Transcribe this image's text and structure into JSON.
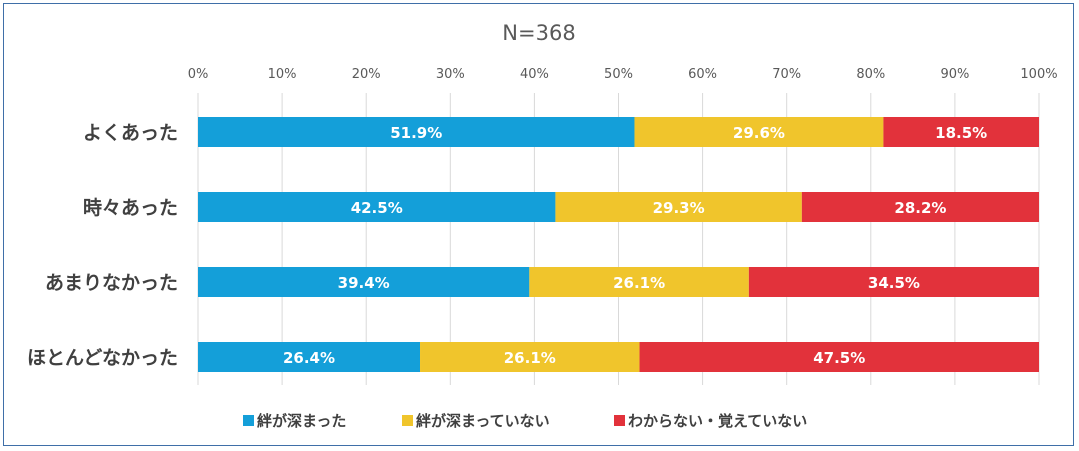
{
  "chart_data": {
    "type": "bar",
    "orientation": "horizontal",
    "stacked": true,
    "title": "N=368",
    "categories": [
      "よくあった",
      "時々あった",
      "あまりなかった",
      "ほとんどなかった"
    ],
    "series": [
      {
        "name": "絆が深まった",
        "color": "#149fd9",
        "values": [
          51.9,
          42.5,
          39.4,
          26.4
        ],
        "labels": [
          "51.9%",
          "42.5%",
          "39.4%",
          "26.4%"
        ]
      },
      {
        "name": "絆が深まっていない",
        "color": "#f0c52c",
        "values": [
          29.6,
          29.3,
          26.1,
          26.1
        ],
        "labels": [
          "29.6%",
          "29.3%",
          "26.1%",
          "26.1%"
        ]
      },
      {
        "name": "わからない・覚えていない",
        "color": "#e2323b",
        "values": [
          18.5,
          28.2,
          34.5,
          47.5
        ],
        "labels": [
          "18.5%",
          "28.2%",
          "34.5%",
          "47.5%"
        ]
      }
    ],
    "xlim": [
      0,
      100
    ],
    "xticks": [
      "0%",
      "10%",
      "20%",
      "30%",
      "40%",
      "50%",
      "60%",
      "70%",
      "80%",
      "90%",
      "100%"
    ],
    "grid": true,
    "legend": "bottom"
  }
}
